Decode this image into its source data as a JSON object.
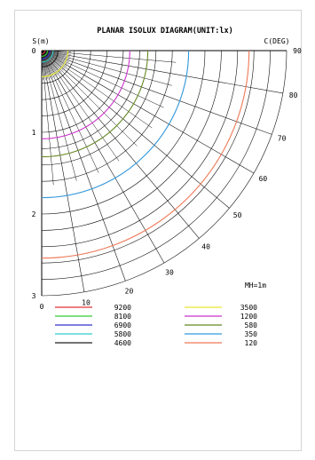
{
  "chart_data": {
    "type": "polar-isolux",
    "title": "PLANAR ISOLUX DIAGRAM(UNIT:lx)",
    "ylabel": "S(m)",
    "angle_label": "C(DEG)",
    "mounting_height_label": "MH=1m",
    "distance_ticks": [
      "0",
      "1",
      "2",
      "3"
    ],
    "angle_ticks": [
      "0",
      "10",
      "20",
      "30",
      "40",
      "50",
      "60",
      "70",
      "80",
      "90"
    ],
    "range_m": [
      0,
      3
    ],
    "angle_range_deg": [
      0,
      90
    ],
    "series": [
      {
        "lux": "9200",
        "color": "#e0303a",
        "radius_m": 0.04
      },
      {
        "lux": "8100",
        "color": "#33cc33",
        "radius_m": 0.07
      },
      {
        "lux": "6900",
        "color": "#3333cc",
        "radius_m": 0.1
      },
      {
        "lux": "5800",
        "color": "#33cccc",
        "radius_m": 0.14
      },
      {
        "lux": "4600",
        "color": "#222222",
        "radius_m": 0.2
      },
      {
        "lux": "3500",
        "color": "#e8e833",
        "radius_m": 0.32
      },
      {
        "lux": "1200",
        "color": "#cc33cc",
        "radius_m": 1.08
      },
      {
        "lux": "580",
        "color": "#668822",
        "radius_m": 1.3
      },
      {
        "lux": "350",
        "color": "#3399dd",
        "radius_m": 1.8
      },
      {
        "lux": "120",
        "color": "#ee7755",
        "radius_m": 2.54
      }
    ]
  }
}
